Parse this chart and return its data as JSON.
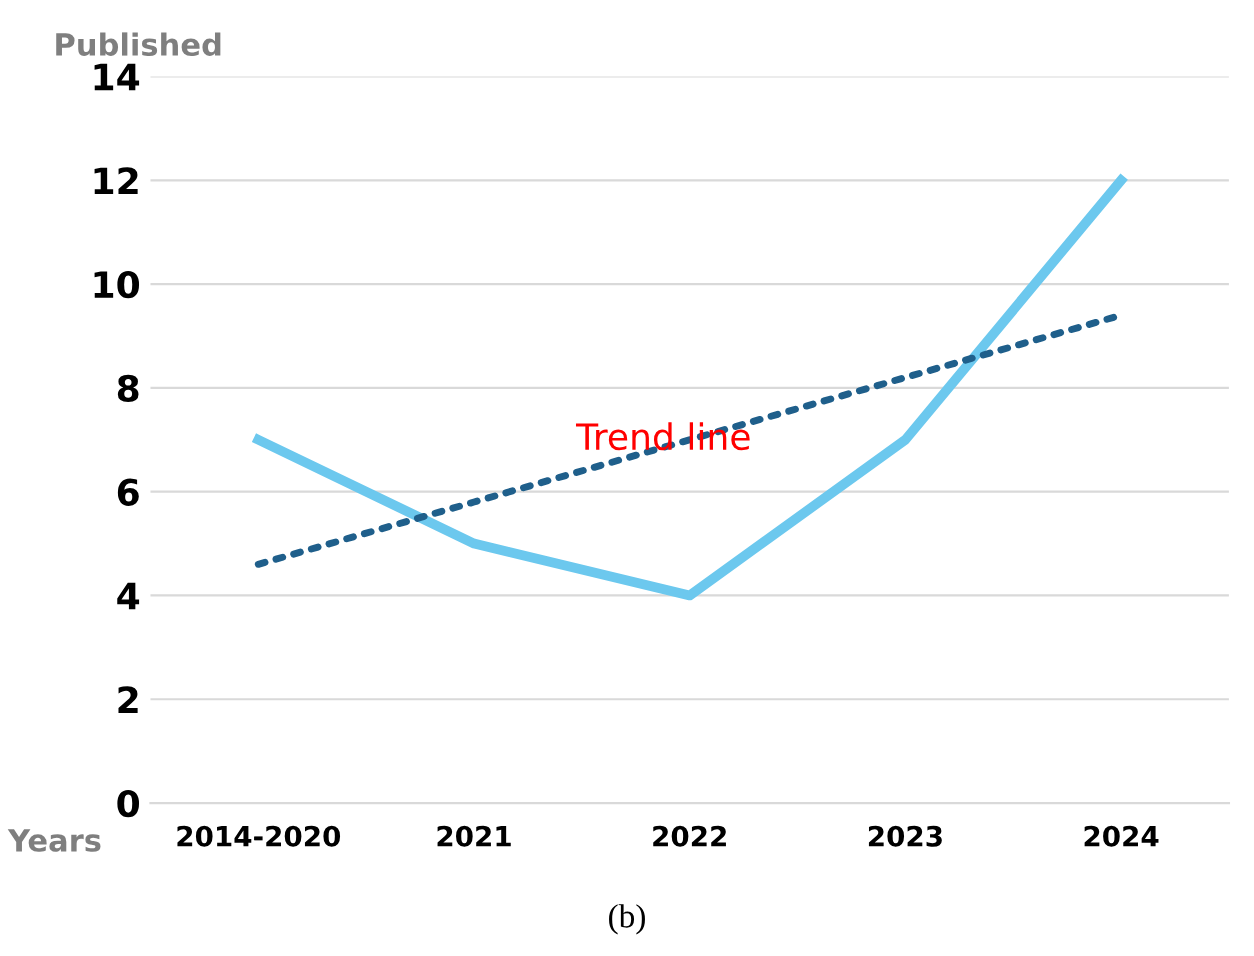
{
  "chart_data": {
    "type": "line",
    "ylabel": "Published",
    "xlabel": "Years",
    "categories": [
      "2014-2020",
      "2021",
      "2022",
      "2023",
      "2024"
    ],
    "series": [
      {
        "color": "#6cc8ee",
        "values": [
          7,
          5,
          4,
          7,
          12
        ],
        "line_style": "solid"
      },
      {
        "color": "#1f5f8b",
        "values": [
          4.6,
          5.8,
          7.0,
          8.2,
          9.4
        ],
        "line_style": "dotted"
      }
    ],
    "ylim": [
      0,
      14
    ],
    "yticks": [
      0,
      2,
      4,
      6,
      8,
      10,
      12,
      14
    ],
    "grid": "y",
    "marker": "none",
    "annotations": [
      {
        "text": "Trend line",
        "x": "2022",
        "y": 7
      },
      "(b)"
    ]
  }
}
